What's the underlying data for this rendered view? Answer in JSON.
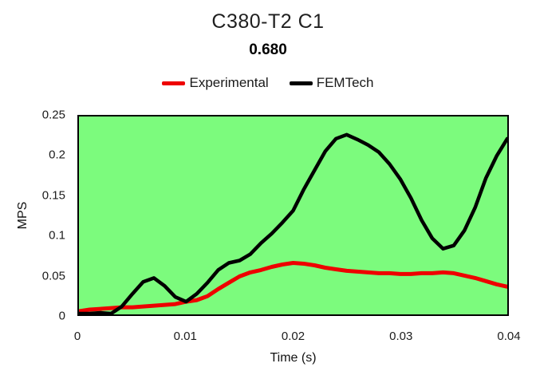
{
  "header": {
    "title": "C380-T2 C1",
    "subtitle": "0.680"
  },
  "legend": {
    "items": [
      {
        "label": "Experimental",
        "color": "#ee0000"
      },
      {
        "label": "FEMTech",
        "color": "#000000"
      }
    ]
  },
  "chart_data": {
    "type": "line",
    "title": "C380-T2 C1",
    "subtitle": "0.680",
    "xlabel": "Time (s)",
    "ylabel": "MPS",
    "xlim": [
      0,
      0.04
    ],
    "ylim": [
      0,
      0.25
    ],
    "x_ticks": [
      0,
      0.01,
      0.02,
      0.03,
      0.04
    ],
    "y_ticks": [
      0,
      0.05,
      0.1,
      0.15,
      0.2,
      0.25
    ],
    "grid": false,
    "legend_position": "top",
    "plot_background": "#7cfb7d",
    "x": [
      0,
      0.001,
      0.002,
      0.003,
      0.004,
      0.005,
      0.006,
      0.007,
      0.008,
      0.009,
      0.01,
      0.011,
      0.012,
      0.013,
      0.014,
      0.015,
      0.016,
      0.017,
      0.018,
      0.019,
      0.02,
      0.021,
      0.022,
      0.023,
      0.024,
      0.025,
      0.026,
      0.027,
      0.028,
      0.029,
      0.03,
      0.031,
      0.032,
      0.033,
      0.034,
      0.035,
      0.036,
      0.037,
      0.038,
      0.039,
      0.04
    ],
    "series": [
      {
        "name": "Experimental",
        "color": "#ee0000",
        "stroke_width": 5,
        "values": [
          0.004,
          0.006,
          0.007,
          0.008,
          0.009,
          0.009,
          0.01,
          0.011,
          0.012,
          0.013,
          0.016,
          0.018,
          0.023,
          0.032,
          0.04,
          0.048,
          0.053,
          0.056,
          0.06,
          0.063,
          0.065,
          0.064,
          0.062,
          0.059,
          0.057,
          0.055,
          0.054,
          0.053,
          0.052,
          0.052,
          0.051,
          0.051,
          0.052,
          0.052,
          0.053,
          0.052,
          0.049,
          0.046,
          0.042,
          0.038,
          0.035
        ]
      },
      {
        "name": "FEMTech",
        "color": "#000000",
        "stroke_width": 4.5,
        "values": [
          0.001,
          0.001,
          0.002,
          0.001,
          0.01,
          0.026,
          0.041,
          0.046,
          0.036,
          0.022,
          0.016,
          0.026,
          0.04,
          0.056,
          0.065,
          0.068,
          0.076,
          0.09,
          0.102,
          0.116,
          0.131,
          0.158,
          0.182,
          0.206,
          0.222,
          0.227,
          0.221,
          0.214,
          0.205,
          0.19,
          0.171,
          0.147,
          0.119,
          0.096,
          0.083,
          0.087,
          0.106,
          0.135,
          0.172,
          0.2,
          0.222
        ]
      }
    ]
  }
}
